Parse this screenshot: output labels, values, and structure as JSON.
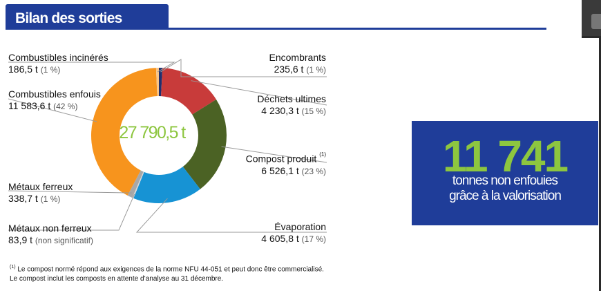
{
  "header": {
    "title": "Bilan des sorties"
  },
  "colors": {
    "brand_blue": "#1f3d99",
    "accent_green": "#8dc63f"
  },
  "chart_data": {
    "type": "pie",
    "donut": true,
    "center_label": "27 790,5 t",
    "start": "top, clockwise",
    "slices": [
      {
        "name": "Encombrants",
        "value": 235.6,
        "value_label": "235,6 t",
        "percent_label": "(1 %)",
        "color": "#1f2f6e"
      },
      {
        "name": "Déchets ultimes",
        "value": 4230.3,
        "value_label": "4 230,3 t",
        "percent_label": "(15 %)",
        "color": "#c83b3a"
      },
      {
        "name": "Compost produit",
        "note": "(1)",
        "value": 6526.1,
        "value_label": "6 526,1 t",
        "percent_label": "(23 %)",
        "color": "#4b6224"
      },
      {
        "name": "Évaporation",
        "value": 4605.8,
        "value_label": "4 605,8 t",
        "percent_label": "(17 %)",
        "color": "#1793d4"
      },
      {
        "name": "Métaux non ferreux",
        "value": 83.9,
        "value_label": "83,9 t",
        "percent_label": "(non significatif)",
        "color": "#d9d9d9"
      },
      {
        "name": "Métaux ferreux",
        "value": 338.7,
        "value_label": "338,7 t",
        "percent_label": "(1 %)",
        "color": "#a8a8a8"
      },
      {
        "name": "Combustibles enfouis",
        "value": 11583.6,
        "value_label": "11 583,6 t",
        "percent_label": "(42 %)",
        "color": "#f7941d"
      },
      {
        "name": "Combustibles incinérés",
        "value": 186.5,
        "value_label": "186,5 t",
        "percent_label": "(1 %)",
        "color": "#f9c589"
      }
    ]
  },
  "stat": {
    "number": "11 741",
    "caption_line1": "tonnes non enfouies",
    "caption_line2": "grâce à la valorisation"
  },
  "footnote": {
    "marker": "(1)",
    "line1": " Le compost normé répond aux exigences de la norme NFU 44-051 et peut donc être commercialisé.",
    "line2": "Le compost inclut les composts en attente d’analyse au 31 décembre."
  }
}
